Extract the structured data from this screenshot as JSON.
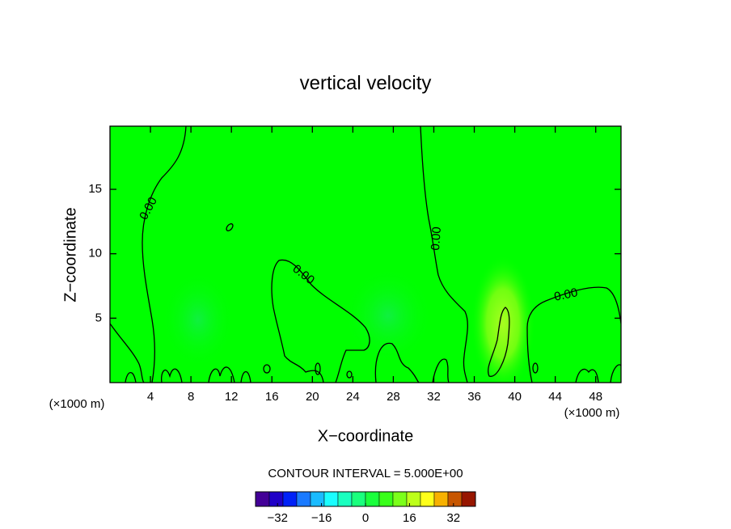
{
  "chart_data": {
    "type": "contour",
    "title": "vertical velocity",
    "xlabel": "X−coordinate",
    "ylabel": "Z−coordinate",
    "xunit": "(×1000 m)",
    "xlim": [
      0,
      50.5
    ],
    "ylim": [
      0,
      19.9
    ],
    "xticks": [
      4,
      8,
      12,
      16,
      20,
      24,
      28,
      32,
      36,
      40,
      44,
      48
    ],
    "yticks": [
      5,
      10,
      15
    ],
    "contour_labels": [
      "0.00",
      "0.00",
      "0.00",
      "0.00"
    ],
    "contour_interval": {
      "value": 5,
      "label": "CONTOUR INTERVAL = 5.000E+00"
    },
    "colorbar": {
      "lim": [
        -40,
        40
      ],
      "ticks": [
        {
          "value": -32,
          "label": "−32"
        },
        {
          "value": -16,
          "label": "−16"
        },
        0,
        16,
        32
      ]
    }
  }
}
